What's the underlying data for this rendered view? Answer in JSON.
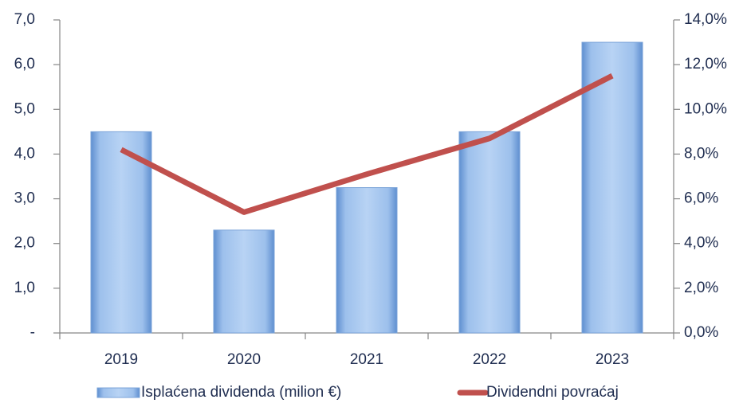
{
  "chart_data": {
    "type": "bar",
    "categories": [
      "2019",
      "2020",
      "2021",
      "2022",
      "2023"
    ],
    "series": [
      {
        "name": "Isplaćena dividenda (milion €)",
        "color": "#8db4e2",
        "values": [
          4.5,
          2.3,
          3.25,
          4.5,
          6.5
        ]
      },
      {
        "name": "Dividendni povraćaj",
        "color": "#c0504d",
        "type": "line",
        "axis": "y2",
        "values": [
          8.2,
          5.4,
          7.1,
          8.7,
          11.5
        ]
      }
    ],
    "ylim": [
      0,
      7
    ],
    "yticks": [
      {
        "value": 0,
        "label": "-"
      },
      {
        "value": 1,
        "label": "1,0"
      },
      {
        "value": 2,
        "label": "2,0"
      },
      {
        "value": 3,
        "label": "3,0"
      },
      {
        "value": 4,
        "label": "4,0"
      },
      {
        "value": 5,
        "label": "5,0"
      },
      {
        "value": 6,
        "label": "6,0"
      },
      {
        "value": 7,
        "label": "7,0"
      }
    ],
    "y2lim": [
      0,
      14
    ],
    "y2ticks": [
      {
        "value": 0,
        "label": "0,0%"
      },
      {
        "value": 2,
        "label": "2,0%"
      },
      {
        "value": 4,
        "label": "4,0%"
      },
      {
        "value": 6,
        "label": "6,0%"
      },
      {
        "value": 8,
        "label": "8,0%"
      },
      {
        "value": 10,
        "label": "10,0%"
      },
      {
        "value": 12,
        "label": "12,0%"
      },
      {
        "value": 14,
        "label": "14,0%"
      }
    ],
    "legend": "bottom",
    "grid": false
  }
}
